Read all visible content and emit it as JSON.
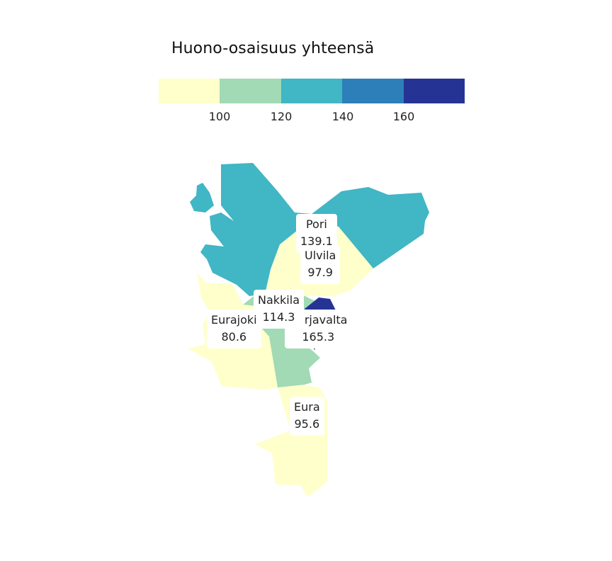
{
  "title": "Huono-osaisuus yhteensä",
  "legend": {
    "colors": [
      "#ffffcc",
      "#a1dab4",
      "#41b6c4",
      "#2c7fb8",
      "#253494"
    ],
    "ticks": [
      "100",
      "120",
      "140",
      "160"
    ]
  },
  "regions": [
    {
      "name": "Pori",
      "value": "139.1",
      "color": "#41b6c4"
    },
    {
      "name": "Ulvila",
      "value": "97.9",
      "color": "#ffffcc"
    },
    {
      "name": "Nakkila",
      "value": "114.3",
      "color": "#a1dab4"
    },
    {
      "name": "Harjavalta",
      "value": "165.3",
      "color": "#253494"
    },
    {
      "name": "Eurajoki",
      "value": "80.6",
      "color": "#ffffcc"
    },
    {
      "name": "Eura",
      "value": "95.6",
      "color": "#ffffcc"
    }
  ]
}
